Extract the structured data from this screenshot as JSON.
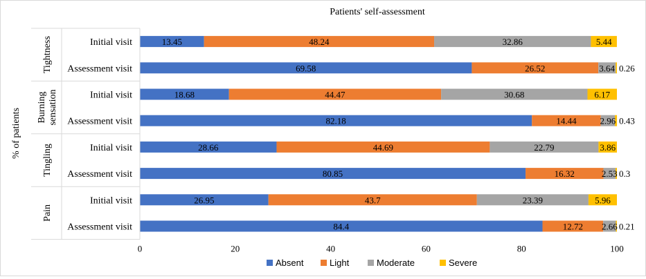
{
  "chart_data": {
    "type": "bar",
    "orientation": "horizontal",
    "stacked": true,
    "title": "Patients' self-assessment",
    "ylabel": "% of patients",
    "xlabel": "",
    "xlim": [
      0,
      100
    ],
    "xticks": [
      0,
      20,
      40,
      60,
      80,
      100
    ],
    "grid": false,
    "legend_position": "bottom",
    "groups": [
      {
        "name": "Tightness",
        "rows": [
          {
            "label": "Initial visit",
            "values": [
              13.45,
              48.24,
              32.86,
              5.44
            ]
          },
          {
            "label": "Assessment visit",
            "values": [
              69.58,
              26.52,
              3.64,
              0.26
            ]
          }
        ]
      },
      {
        "name": "Burning sensation",
        "name_lines": [
          "Burning",
          "sensation"
        ],
        "rows": [
          {
            "label": "Initial visit",
            "values": [
              18.68,
              44.47,
              30.68,
              6.17
            ]
          },
          {
            "label": "Assessment visit",
            "values": [
              82.18,
              14.44,
              2.96,
              0.43
            ]
          }
        ]
      },
      {
        "name": "Tingling",
        "rows": [
          {
            "label": "Initial visit",
            "values": [
              28.66,
              44.69,
              22.79,
              3.86
            ]
          },
          {
            "label": "Assessment visit",
            "values": [
              80.85,
              16.32,
              2.53,
              0.3
            ]
          }
        ]
      },
      {
        "name": "Pain",
        "rows": [
          {
            "label": "Initial visit",
            "values": [
              26.95,
              43.7,
              23.39,
              5.96
            ]
          },
          {
            "label": "Assessment visit",
            "values": [
              84.4,
              12.72,
              2.66,
              0.21
            ]
          }
        ]
      }
    ],
    "series": [
      {
        "name": "Absent",
        "color": "#4472c4"
      },
      {
        "name": "Light",
        "color": "#ed7d31"
      },
      {
        "name": "Moderate",
        "color": "#a5a5a5"
      },
      {
        "name": "Severe",
        "color": "#ffc000"
      }
    ]
  }
}
